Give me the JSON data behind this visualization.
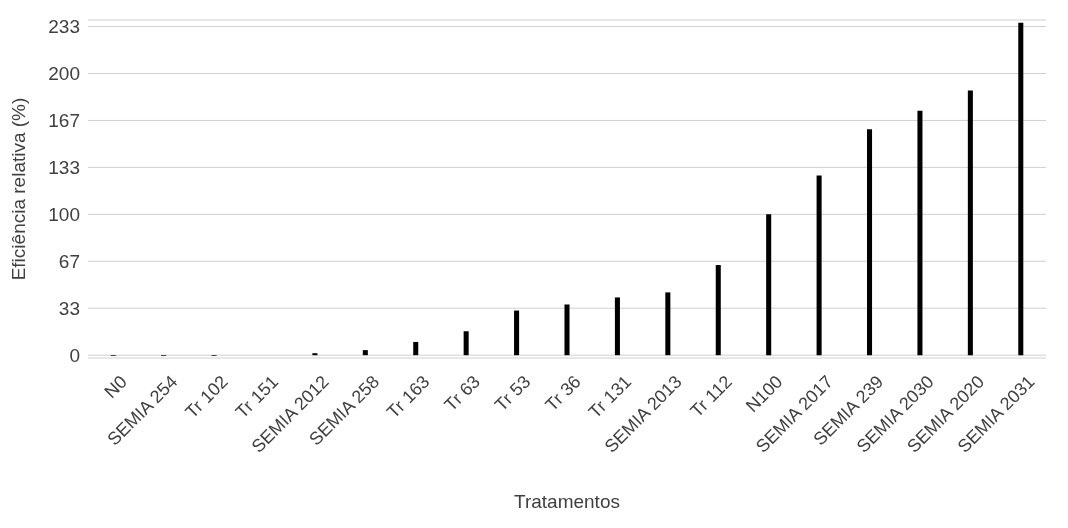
{
  "chart_data": {
    "type": "bar",
    "xlabel": "Tratamentos",
    "ylabel": "Eficiência relativa (%)",
    "categories": [
      "N0",
      "SEMIA 254",
      "Tr 102",
      "Tr 151",
      "SEMIA 2012",
      "SEMIA 258",
      "Tr 163",
      "Tr 63",
      "Tr 53",
      "Tr 36",
      "Tr 131",
      "SEMIA 2013",
      "Tr 112",
      "N100",
      "SEMIA 2017",
      "SEMIA 239",
      "SEMIA 2030",
      "SEMIA 2020",
      "SEMIA 2031"
    ],
    "values": [
      -0.5,
      -0.5,
      -0.5,
      0,
      1.4,
      3.6,
      9.4,
      17,
      31.7,
      36,
      41,
      44.6,
      64,
      100,
      127.5,
      160.5,
      173.5,
      188,
      236
    ],
    "color": "#000000",
    "ylim": [
      -2,
      238
    ],
    "yticks": [
      0,
      {
        "value": 33.33,
        "label": "33"
      },
      {
        "value": 66.67,
        "label": "67"
      },
      100,
      {
        "value": 133.33,
        "label": "133"
      },
      {
        "value": 166.67,
        "label": "167"
      },
      200,
      {
        "value": 233.33,
        "label": "233"
      }
    ],
    "grid": "y"
  }
}
